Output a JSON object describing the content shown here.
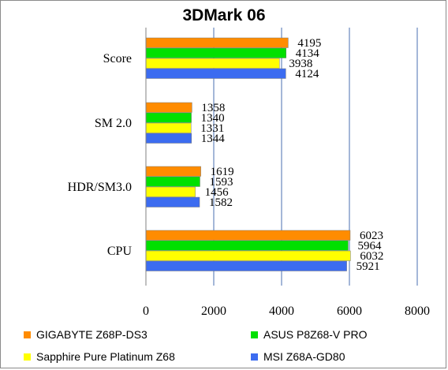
{
  "chart_data": {
    "type": "bar",
    "orientation": "horizontal",
    "title": "3DMark 06",
    "xlabel": "",
    "ylabel": "",
    "categories": [
      "Score",
      "SM 2.0",
      "HDR/SM3.0",
      "CPU"
    ],
    "series": [
      {
        "name": "GIGABYTE Z68P-DS3",
        "color": "#ff8c00",
        "values": [
          4195,
          1358,
          1619,
          6023
        ]
      },
      {
        "name": "ASUS P8Z68-V PRO",
        "color": "#00e000",
        "values": [
          4134,
          1340,
          1593,
          5964
        ]
      },
      {
        "name": "Sapphire Pure Platinum  Z68",
        "color": "#ffff00",
        "values": [
          3938,
          1331,
          1456,
          6032
        ]
      },
      {
        "name": "MSI Z68A-GD80",
        "color": "#3c6cf0",
        "values": [
          4124,
          1344,
          1582,
          5921
        ]
      }
    ],
    "xlim": [
      0,
      8000
    ],
    "xticks": [
      0,
      2000,
      4000,
      6000,
      8000
    ],
    "grid": "vertical",
    "legend_position": "bottom"
  }
}
